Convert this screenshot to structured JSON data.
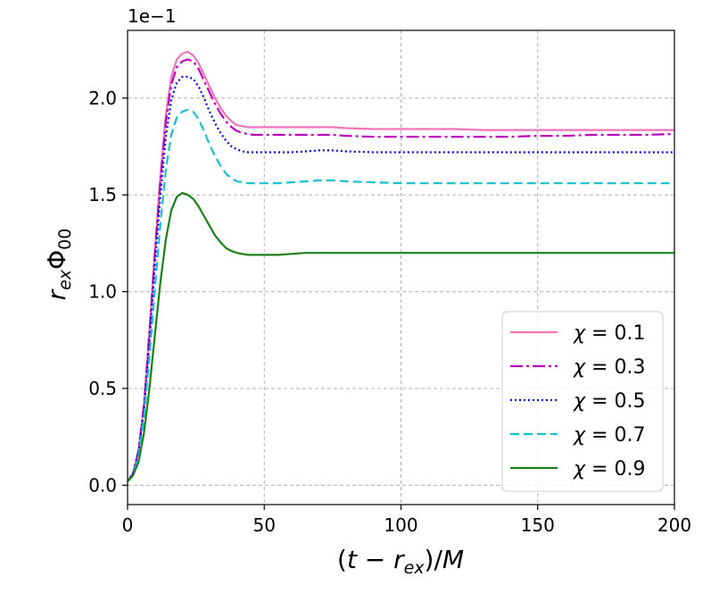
{
  "chart_data": {
    "type": "line",
    "title": "",
    "offset_text": "1e−1",
    "xlabel": {
      "open": "(",
      "t": "t",
      "minus": " − ",
      "r": "r",
      "sub": "ex",
      "close": ")/",
      "M": "M"
    },
    "ylabel": {
      "r": "r",
      "sub": "ex",
      "phi": "Φ",
      "sub2": "00"
    },
    "xlim": [
      0,
      200
    ],
    "ylim": [
      -0.1,
      2.35
    ],
    "xticks": [
      0,
      50,
      100,
      150,
      200
    ],
    "xtick_labels": [
      "0",
      "50",
      "100",
      "150",
      "200"
    ],
    "yticks": [
      0.0,
      0.5,
      1.0,
      1.5,
      2.0
    ],
    "ytick_labels": [
      "0.0",
      "0.5",
      "1.0",
      "1.5",
      "2.0"
    ],
    "grid": true,
    "legend_position": "bottom-right",
    "x": [
      0,
      2,
      4,
      6,
      8,
      10,
      12,
      14,
      16,
      18,
      20,
      22,
      24,
      26,
      28,
      30,
      32,
      34,
      36,
      38,
      40,
      42,
      44,
      46,
      48,
      50,
      55,
      60,
      65,
      70,
      75,
      80,
      90,
      100,
      110,
      120,
      130,
      140,
      150,
      160,
      170,
      180,
      190,
      200
    ],
    "series": [
      {
        "name": "χ = 0.1",
        "chi": "0.1",
        "color": "#f075b8",
        "dash": "",
        "values": [
          0.02,
          0.06,
          0.18,
          0.42,
          0.8,
          1.22,
          1.6,
          1.91,
          2.11,
          2.2,
          2.23,
          2.24,
          2.22,
          2.18,
          2.12,
          2.06,
          2.0,
          1.95,
          1.91,
          1.88,
          1.86,
          1.855,
          1.85,
          1.85,
          1.85,
          1.85,
          1.85,
          1.85,
          1.85,
          1.85,
          1.85,
          1.845,
          1.84,
          1.84,
          1.84,
          1.84,
          1.835,
          1.835,
          1.835,
          1.835,
          1.835,
          1.835,
          1.835,
          1.835
        ]
      },
      {
        "name": "χ = 0.3",
        "chi": "0.3",
        "color": "#bb00bb",
        "dash": "14 4 3 4",
        "values": [
          0.02,
          0.06,
          0.18,
          0.41,
          0.78,
          1.2,
          1.57,
          1.88,
          2.07,
          2.16,
          2.19,
          2.2,
          2.19,
          2.15,
          2.09,
          2.03,
          1.97,
          1.92,
          1.88,
          1.85,
          1.83,
          1.82,
          1.815,
          1.81,
          1.81,
          1.81,
          1.81,
          1.81,
          1.81,
          1.81,
          1.81,
          1.805,
          1.8,
          1.8,
          1.8,
          1.8,
          1.8,
          1.8,
          1.805,
          1.805,
          1.81,
          1.81,
          1.81,
          1.815
        ]
      },
      {
        "name": "χ = 0.5",
        "chi": "0.5",
        "color": "#0000dd",
        "dash": "2 3",
        "values": [
          0.02,
          0.06,
          0.17,
          0.39,
          0.74,
          1.14,
          1.5,
          1.8,
          1.99,
          2.08,
          2.11,
          2.11,
          2.1,
          2.06,
          2.0,
          1.93,
          1.87,
          1.82,
          1.78,
          1.75,
          1.735,
          1.725,
          1.72,
          1.72,
          1.72,
          1.72,
          1.72,
          1.72,
          1.725,
          1.73,
          1.73,
          1.725,
          1.72,
          1.72,
          1.72,
          1.72,
          1.72,
          1.72,
          1.72,
          1.72,
          1.72,
          1.72,
          1.72,
          1.72
        ]
      },
      {
        "name": "χ = 0.7",
        "chi": "0.7",
        "color": "#17bfcf",
        "dash": "10 5",
        "values": [
          0.02,
          0.05,
          0.15,
          0.35,
          0.66,
          1.02,
          1.35,
          1.63,
          1.81,
          1.9,
          1.93,
          1.94,
          1.93,
          1.89,
          1.83,
          1.76,
          1.7,
          1.65,
          1.61,
          1.585,
          1.57,
          1.565,
          1.56,
          1.56,
          1.56,
          1.56,
          1.56,
          1.565,
          1.57,
          1.575,
          1.575,
          1.57,
          1.565,
          1.56,
          1.56,
          1.56,
          1.56,
          1.56,
          1.56,
          1.56,
          1.56,
          1.56,
          1.56,
          1.56
        ]
      },
      {
        "name": "χ = 0.9",
        "chi": "0.9",
        "color": "#1a801a",
        "dash": "",
        "values": [
          0.02,
          0.05,
          0.12,
          0.27,
          0.5,
          0.78,
          1.05,
          1.27,
          1.42,
          1.49,
          1.51,
          1.5,
          1.48,
          1.44,
          1.39,
          1.34,
          1.29,
          1.255,
          1.225,
          1.21,
          1.2,
          1.195,
          1.19,
          1.19,
          1.19,
          1.19,
          1.19,
          1.195,
          1.2,
          1.2,
          1.2,
          1.2,
          1.2,
          1.2,
          1.2,
          1.2,
          1.2,
          1.2,
          1.2,
          1.2,
          1.2,
          1.2,
          1.2,
          1.2
        ]
      }
    ]
  }
}
